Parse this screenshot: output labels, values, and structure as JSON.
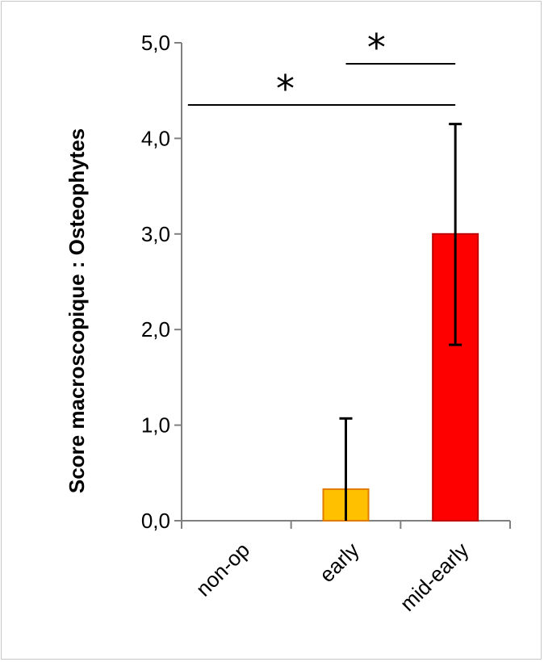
{
  "chart_data": {
    "type": "bar",
    "title": "",
    "xlabel": "",
    "ylabel": "Score macroscopique : Osteophytes",
    "ylim": [
      0,
      5
    ],
    "yticks": [
      "0,0",
      "1,0",
      "2,0",
      "3,0",
      "4,0",
      "5,0"
    ],
    "categories": [
      "non-op",
      "early",
      "mid-early"
    ],
    "values": [
      0,
      0.33,
      3.0
    ],
    "error_upper": [
      0,
      1.07,
      4.15
    ],
    "error_lower": [
      0,
      0,
      1.84
    ],
    "colors": [
      "#ffffff",
      "#ffc000",
      "#ff0000"
    ],
    "edge_colors": [
      "#ffffff",
      "#e07b00",
      "#c00000"
    ],
    "grid": false,
    "legend": "none",
    "significance": [
      {
        "from": 0,
        "to": 2,
        "y": 4.35,
        "label": "*"
      },
      {
        "from": 1,
        "to": 2,
        "y": 4.78,
        "label": "*"
      }
    ]
  }
}
